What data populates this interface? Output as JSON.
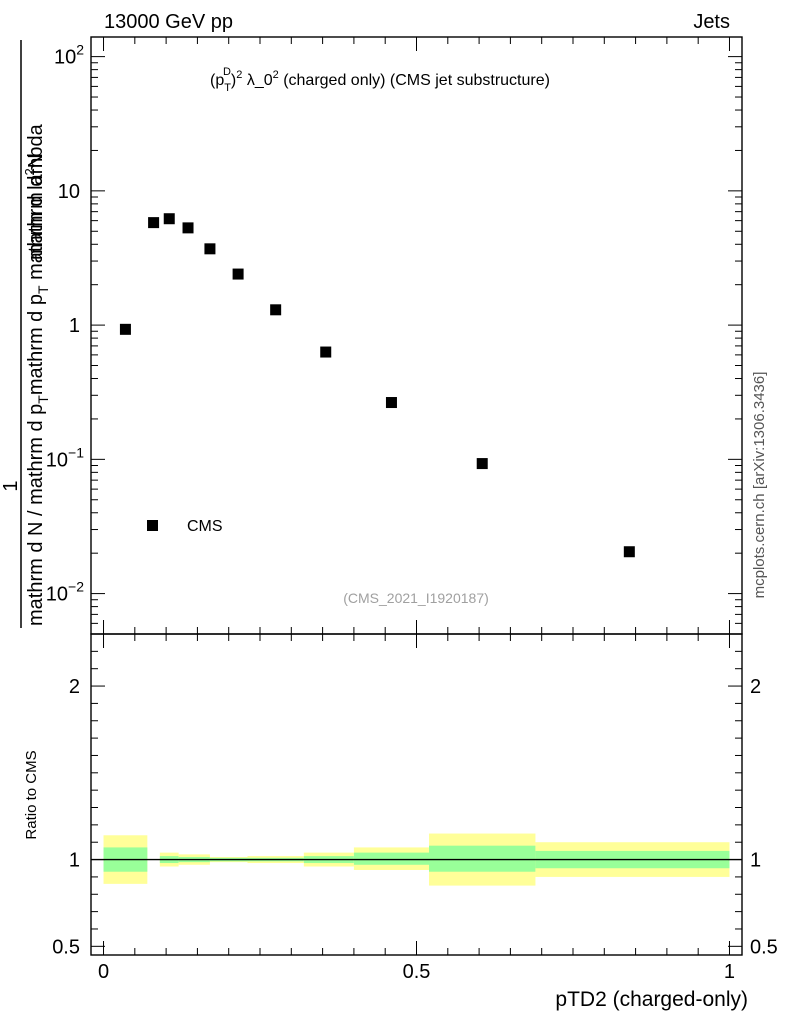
{
  "header": {
    "energy": "13000 GeV pp",
    "category": "Jets",
    "side_label": "mcplots.cern.ch [arXiv:1306.3436]"
  },
  "chart_data": [
    {
      "type": "scatter",
      "title": "(pTD)2 λ_02 (charged only) (CMS jet substructure)",
      "title_parts": {
        "p": "(p",
        "sub": "T",
        "sup": "D",
        "close": ")",
        "exp": "2",
        "lam": " λ_0",
        "exp2": "2",
        "rest": " (charged only) (CMS jet substructure)"
      },
      "analysis_id": "(CMS_2021_I1920187)",
      "ylabel": "1 / mathrm d N / mathrm d pT mathrm d pT mathrm d lambda · mathrm d2N",
      "ylabel_parts": {
        "one": "1",
        "den_a": "mathrm d N / mathrm d p",
        "den_sub": "T",
        "den_b": "mathrm d p",
        "den_sub2": "T",
        "den_c": " mathrm d lambda",
        "num_a": "mathrm d",
        "num_sup": "2",
        "num_b": "N"
      },
      "yscale": "log",
      "ylim": [
        0.005,
        140
      ],
      "xlim": [
        -0.02,
        1.02
      ],
      "yticks": [
        {
          "value": 0.01,
          "base": "10",
          "exp": "−2"
        },
        {
          "value": 0.1,
          "base": "10",
          "exp": "−1"
        },
        {
          "value": 1,
          "base": "1",
          "exp": ""
        },
        {
          "value": 10,
          "base": "10",
          "exp": ""
        },
        {
          "value": 100,
          "base": "10",
          "exp": "2"
        }
      ],
      "legend": {
        "placement": "bottom-left",
        "entries": [
          "CMS"
        ]
      },
      "series": [
        {
          "name": "CMS",
          "marker": "square",
          "color": "#000000",
          "x": [
            0.035,
            0.08,
            0.105,
            0.135,
            0.17,
            0.215,
            0.275,
            0.355,
            0.46,
            0.605,
            0.84
          ],
          "y": [
            0.93,
            5.8,
            6.2,
            5.3,
            3.7,
            2.4,
            1.3,
            0.63,
            0.265,
            0.093,
            0.0205
          ]
        }
      ]
    },
    {
      "type": "area",
      "ylabel": "Ratio to CMS",
      "xlabel": "pTD2 (charged-only)",
      "ylim": [
        0.45,
        2.3
      ],
      "xlim": [
        -0.02,
        1.02
      ],
      "xticks": [
        {
          "value": 0,
          "label": "0"
        },
        {
          "value": 0.5,
          "label": "0.5"
        },
        {
          "value": 1,
          "label": "1"
        }
      ],
      "yticks": [
        {
          "value": 0.5,
          "label": "0.5"
        },
        {
          "value": 1,
          "label": "1"
        },
        {
          "value": 2,
          "label": "2"
        }
      ],
      "band_colors": {
        "inner": "#99ff99",
        "outer": "#ffff99",
        "line": "#000000"
      },
      "bins": [
        {
          "x0": 0.0,
          "x1": 0.07,
          "inner": [
            0.93,
            1.07
          ],
          "outer": [
            0.86,
            1.14
          ]
        },
        {
          "x0": 0.09,
          "x1": 0.12,
          "inner": [
            0.98,
            1.02
          ],
          "outer": [
            0.96,
            1.04
          ]
        },
        {
          "x0": 0.12,
          "x1": 0.17,
          "inner": [
            0.985,
            1.015
          ],
          "outer": [
            0.97,
            1.03
          ]
        },
        {
          "x0": 0.17,
          "x1": 0.23,
          "inner": [
            0.99,
            1.01
          ],
          "outer": [
            0.985,
            1.015
          ]
        },
        {
          "x0": 0.23,
          "x1": 0.32,
          "inner": [
            0.99,
            1.01
          ],
          "outer": [
            0.98,
            1.02
          ]
        },
        {
          "x0": 0.32,
          "x1": 0.4,
          "inner": [
            0.98,
            1.02
          ],
          "outer": [
            0.96,
            1.04
          ]
        },
        {
          "x0": 0.4,
          "x1": 0.52,
          "inner": [
            0.97,
            1.04
          ],
          "outer": [
            0.94,
            1.07
          ]
        },
        {
          "x0": 0.52,
          "x1": 0.69,
          "inner": [
            0.93,
            1.08
          ],
          "outer": [
            0.85,
            1.15
          ]
        },
        {
          "x0": 0.69,
          "x1": 1.0,
          "inner": [
            0.95,
            1.05
          ],
          "outer": [
            0.9,
            1.1
          ]
        }
      ],
      "reference": 1
    }
  ]
}
